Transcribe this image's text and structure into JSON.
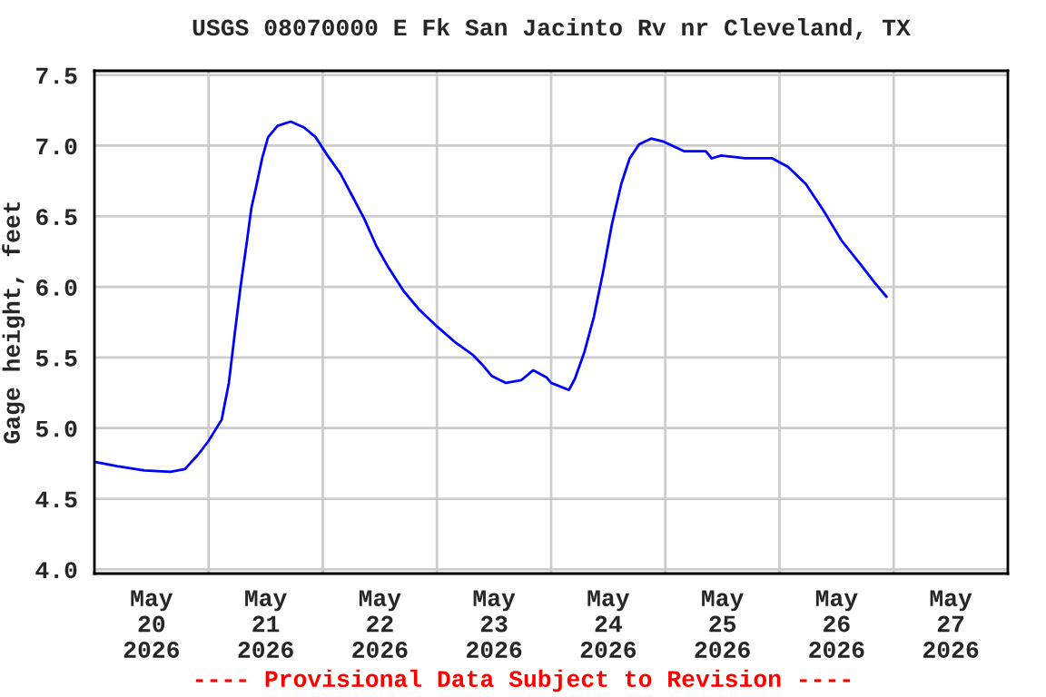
{
  "chart_data": {
    "type": "line",
    "title": "USGS 08070000 E Fk San Jacinto Rv nr Cleveland, TX",
    "ylabel": "Gage height, feet",
    "annotations": [
      "---- Provisional Data Subject to Revision ----"
    ],
    "x": [
      "2026-05-20T00:15",
      "2026-05-20T04:45",
      "2026-05-20T10:30",
      "2026-05-20T16:00",
      "2026-05-20T19:00",
      "2026-05-20T21:45",
      "2026-05-21T00:00",
      "2026-05-21T02:45",
      "2026-05-21T04:15",
      "2026-05-21T05:30",
      "2026-05-21T06:45",
      "2026-05-21T08:00",
      "2026-05-21T09:00",
      "2026-05-21T10:00",
      "2026-05-21T11:15",
      "2026-05-21T12:30",
      "2026-05-21T14:30",
      "2026-05-21T17:15",
      "2026-05-21T20:00",
      "2026-05-21T22:30",
      "2026-05-22T01:00",
      "2026-05-22T03:45",
      "2026-05-22T06:15",
      "2026-05-22T08:45",
      "2026-05-22T11:15",
      "2026-05-22T13:45",
      "2026-05-22T17:00",
      "2026-05-22T20:15",
      "2026-05-23T00:00",
      "2026-05-23T03:45",
      "2026-05-23T07:30",
      "2026-05-23T09:30",
      "2026-05-23T11:30",
      "2026-05-23T14:30",
      "2026-05-23T17:45",
      "2026-05-23T20:15",
      "2026-05-23T23:00",
      "2026-05-24T00:00",
      "2026-05-24T03:45",
      "2026-05-24T05:00",
      "2026-05-24T07:00",
      "2026-05-24T09:00",
      "2026-05-24T11:00",
      "2026-05-24T12:45",
      "2026-05-24T14:45",
      "2026-05-24T16:30",
      "2026-05-24T18:30",
      "2026-05-24T21:00",
      "2026-05-24T23:30",
      "2026-05-25T04:00",
      "2026-05-25T08:30",
      "2026-05-25T09:45",
      "2026-05-25T11:45",
      "2026-05-25T16:45",
      "2026-05-25T22:30",
      "2026-05-26T01:45",
      "2026-05-26T05:30",
      "2026-05-26T09:15",
      "2026-05-26T13:00",
      "2026-05-26T17:00",
      "2026-05-26T20:00",
      "2026-05-26T22:30"
    ],
    "series": [
      {
        "color": "#0000ff",
        "values": [
          4.76,
          4.73,
          4.7,
          4.69,
          4.71,
          4.81,
          4.91,
          5.06,
          5.32,
          5.67,
          6.01,
          6.31,
          6.56,
          6.71,
          6.91,
          7.06,
          7.14,
          7.17,
          7.13,
          7.06,
          6.93,
          6.8,
          6.64,
          6.48,
          6.29,
          6.14,
          5.97,
          5.84,
          5.72,
          5.61,
          5.52,
          5.45,
          5.37,
          5.32,
          5.34,
          5.41,
          5.36,
          5.32,
          5.27,
          5.35,
          5.54,
          5.79,
          6.12,
          6.44,
          6.73,
          6.91,
          7.01,
          7.05,
          7.03,
          6.96,
          6.96,
          6.91,
          6.93,
          6.91,
          6.91,
          6.85,
          6.73,
          6.54,
          6.33,
          6.16,
          6.03,
          5.93
        ]
      }
    ],
    "xlim": [
      "2026-05-20T00:00",
      "2026-05-28T00:00"
    ],
    "xticks": [
      {
        "value": "2026-05-20T12:00",
        "label": "May\n20\n2026"
      },
      {
        "value": "2026-05-21T12:00",
        "label": "May\n21\n2026"
      },
      {
        "value": "2026-05-22T12:00",
        "label": "May\n22\n2026"
      },
      {
        "value": "2026-05-23T12:00",
        "label": "May\n23\n2026"
      },
      {
        "value": "2026-05-24T12:00",
        "label": "May\n24\n2026"
      },
      {
        "value": "2026-05-25T12:00",
        "label": "May\n25\n2026"
      },
      {
        "value": "2026-05-26T12:00",
        "label": "May\n26\n2026"
      },
      {
        "value": "2026-05-27T12:00",
        "label": "May\n27\n2026"
      },
      {
        "value": "2026-05-21T00:00",
        "label": null
      },
      {
        "value": "2026-05-22T00:00",
        "label": null
      },
      {
        "value": "2026-05-23T00:00",
        "label": null
      },
      {
        "value": "2026-05-24T00:00",
        "label": null
      },
      {
        "value": "2026-05-25T00:00",
        "label": null
      },
      {
        "value": "2026-05-26T00:00",
        "label": null
      },
      {
        "value": "2026-05-27T00:00",
        "label": null
      }
    ],
    "ylim": [
      3.97,
      7.53
    ],
    "yticks": [
      {
        "value": 4,
        "label": "4.0"
      },
      {
        "value": 4.5,
        "label": "4.5"
      },
      {
        "value": 5,
        "label": "5.0"
      },
      {
        "value": 5.5,
        "label": "5.5"
      },
      {
        "value": 6,
        "label": "6.0"
      },
      {
        "value": 6.5,
        "label": "6.5"
      },
      {
        "value": 7,
        "label": "7.0"
      },
      {
        "value": 7.5,
        "label": "7.5"
      }
    ],
    "grid": true,
    "legend": false,
    "marker": "none",
    "line_style": "solid"
  }
}
